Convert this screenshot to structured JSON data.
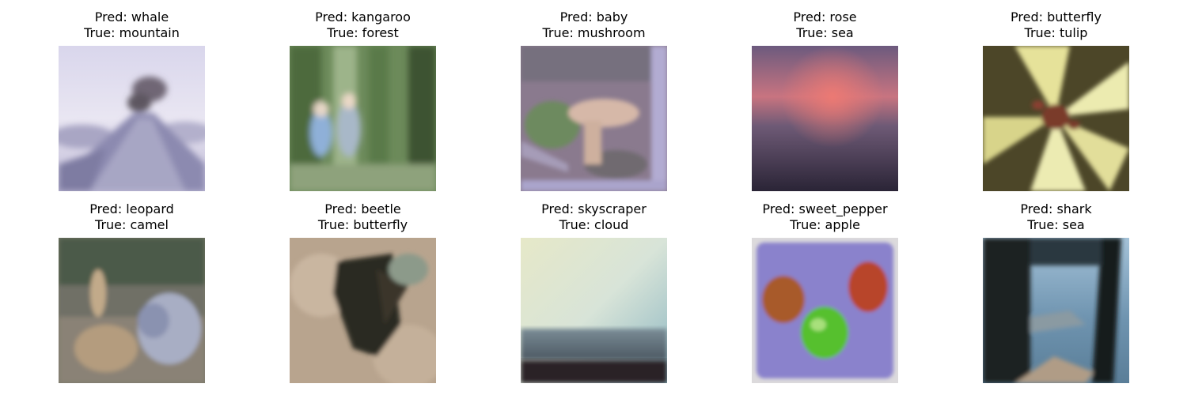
{
  "grid": [
    {
      "pred": "Pred: whale",
      "true_label": "True: mountain"
    },
    {
      "pred": "Pred: kangaroo",
      "true_label": "True: forest"
    },
    {
      "pred": "Pred: baby",
      "true_label": "True: mushroom"
    },
    {
      "pred": "Pred: rose",
      "true_label": "True: sea"
    },
    {
      "pred": "Pred: butterfly",
      "true_label": "True: tulip"
    },
    {
      "pred": "Pred: leopard",
      "true_label": "True: camel"
    },
    {
      "pred": "Pred: beetle",
      "true_label": "True: butterfly"
    },
    {
      "pred": "Pred: skyscraper",
      "true_label": "True: cloud"
    },
    {
      "pred": "Pred: sweet_pepper",
      "true_label": "True: apple"
    },
    {
      "pred": "Pred: shark",
      "true_label": "True: sea"
    }
  ]
}
